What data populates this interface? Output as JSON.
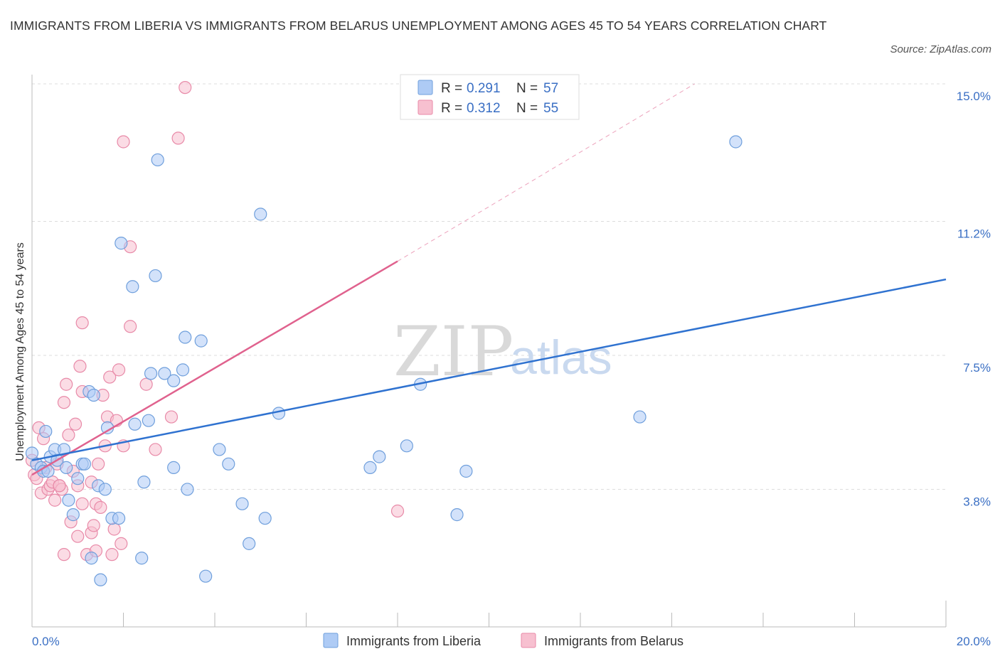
{
  "header": {
    "title": "IMMIGRANTS FROM LIBERIA VS IMMIGRANTS FROM BELARUS UNEMPLOYMENT AMONG AGES 45 TO 54 YEARS CORRELATION CHART",
    "source": "Source: ZipAtlas.com"
  },
  "watermark": {
    "zip": "ZIP",
    "atlas": "atlas"
  },
  "legend": {
    "r_label": "R =",
    "n_label": "N =",
    "liberia": {
      "r": "0.291",
      "n": "57"
    },
    "belarus": {
      "r": "0.312",
      "n": "55"
    }
  },
  "bottom_legend": {
    "liberia": "Immigrants from Liberia",
    "belarus": "Immigrants from Belarus"
  },
  "colors": {
    "liberia_fill": "#aecbf5",
    "liberia_stroke": "#6f9fdc",
    "liberia_line": "#2f72d0",
    "belarus_fill": "#f7c0d0",
    "belarus_stroke": "#e88aa8",
    "belarus_line": "#e0628e",
    "axis_text": "#3a6fc4",
    "grid": "#dddddd"
  },
  "chart_data": {
    "type": "scatter",
    "title": "IMMIGRANTS FROM LIBERIA VS IMMIGRANTS FROM BELARUS UNEMPLOYMENT AMONG AGES 45 TO 54 YEARS CORRELATION CHART",
    "xlabel": "",
    "ylabel": "Unemployment Among Ages 45 to 54 years",
    "xlim": [
      0,
      20
    ],
    "ylim": [
      0,
      15
    ],
    "x_tick_labels": [
      "0.0%",
      "20.0%"
    ],
    "y_ticks": [
      3.8,
      7.5,
      11.2,
      15.0
    ],
    "y_tick_labels": [
      "3.8%",
      "7.5%",
      "11.2%",
      "15.0%"
    ],
    "grid": true,
    "legend_position": "top-center",
    "series": [
      {
        "name": "Immigrants from Liberia",
        "R": 0.291,
        "N": 57,
        "trend": {
          "x": [
            0,
            20
          ],
          "y": [
            4.6,
            9.6
          ],
          "dashed_extension": false
        },
        "points": [
          [
            0.0,
            4.8
          ],
          [
            0.1,
            4.5
          ],
          [
            0.2,
            4.4
          ],
          [
            0.25,
            4.3
          ],
          [
            0.3,
            5.4
          ],
          [
            0.35,
            4.3
          ],
          [
            0.4,
            4.7
          ],
          [
            0.5,
            4.9
          ],
          [
            0.55,
            4.6
          ],
          [
            0.7,
            4.9
          ],
          [
            0.75,
            4.4
          ],
          [
            0.8,
            3.5
          ],
          [
            0.9,
            3.1
          ],
          [
            1.0,
            4.1
          ],
          [
            1.1,
            4.5
          ],
          [
            1.15,
            4.5
          ],
          [
            1.25,
            6.5
          ],
          [
            1.3,
            1.9
          ],
          [
            1.35,
            6.4
          ],
          [
            1.45,
            3.9
          ],
          [
            1.5,
            1.3
          ],
          [
            1.6,
            3.8
          ],
          [
            1.65,
            5.5
          ],
          [
            1.75,
            3.0
          ],
          [
            1.9,
            3.0
          ],
          [
            1.95,
            10.6
          ],
          [
            2.2,
            9.4
          ],
          [
            2.25,
            5.6
          ],
          [
            2.4,
            1.9
          ],
          [
            2.45,
            4.0
          ],
          [
            2.55,
            5.7
          ],
          [
            2.6,
            7.0
          ],
          [
            2.7,
            9.7
          ],
          [
            2.75,
            12.9
          ],
          [
            2.9,
            7.0
          ],
          [
            3.1,
            6.8
          ],
          [
            3.1,
            4.4
          ],
          [
            3.3,
            7.1
          ],
          [
            3.35,
            8.0
          ],
          [
            3.4,
            3.8
          ],
          [
            3.7,
            7.9
          ],
          [
            3.8,
            1.4
          ],
          [
            4.1,
            4.9
          ],
          [
            4.3,
            4.5
          ],
          [
            4.6,
            3.4
          ],
          [
            4.75,
            2.3
          ],
          [
            5.0,
            11.4
          ],
          [
            5.1,
            3.0
          ],
          [
            5.4,
            5.9
          ],
          [
            7.4,
            4.4
          ],
          [
            7.6,
            4.7
          ],
          [
            8.2,
            5.0
          ],
          [
            8.5,
            6.7
          ],
          [
            9.3,
            3.1
          ],
          [
            9.5,
            4.3
          ],
          [
            13.3,
            5.8
          ],
          [
            15.4,
            13.4
          ]
        ]
      },
      {
        "name": "Immigrants from Belarus",
        "R": 0.312,
        "N": 55,
        "trend": {
          "x": [
            0,
            8
          ],
          "y": [
            4.2,
            10.1
          ],
          "dashed_extension_to": [
            14.5,
            15.0
          ]
        },
        "points": [
          [
            0.0,
            4.6
          ],
          [
            0.05,
            4.2
          ],
          [
            0.1,
            4.1
          ],
          [
            0.15,
            5.5
          ],
          [
            0.2,
            3.7
          ],
          [
            0.25,
            5.2
          ],
          [
            0.3,
            4.4
          ],
          [
            0.35,
            3.8
          ],
          [
            0.4,
            3.9
          ],
          [
            0.45,
            4.0
          ],
          [
            0.5,
            3.5
          ],
          [
            0.55,
            4.5
          ],
          [
            0.6,
            3.9
          ],
          [
            0.65,
            3.8
          ],
          [
            0.7,
            2.0
          ],
          [
            0.7,
            6.2
          ],
          [
            0.75,
            6.7
          ],
          [
            0.8,
            5.3
          ],
          [
            0.85,
            2.9
          ],
          [
            0.9,
            4.3
          ],
          [
            0.95,
            5.6
          ],
          [
            1.0,
            2.5
          ],
          [
            1.0,
            3.9
          ],
          [
            1.05,
            7.2
          ],
          [
            1.1,
            3.4
          ],
          [
            1.1,
            6.5
          ],
          [
            1.2,
            2.0
          ],
          [
            1.3,
            4.0
          ],
          [
            1.3,
            2.6
          ],
          [
            1.35,
            2.8
          ],
          [
            1.4,
            3.4
          ],
          [
            1.45,
            4.5
          ],
          [
            1.5,
            3.3
          ],
          [
            1.55,
            6.4
          ],
          [
            1.6,
            5.0
          ],
          [
            1.65,
            5.8
          ],
          [
            1.7,
            6.9
          ],
          [
            1.75,
            2.0
          ],
          [
            1.8,
            2.7
          ],
          [
            1.85,
            5.7
          ],
          [
            1.9,
            7.1
          ],
          [
            1.95,
            2.3
          ],
          [
            2.0,
            5.0
          ],
          [
            2.0,
            13.4
          ],
          [
            2.15,
            10.5
          ],
          [
            2.15,
            8.3
          ],
          [
            2.5,
            6.7
          ],
          [
            2.7,
            4.9
          ],
          [
            3.05,
            5.8
          ],
          [
            3.2,
            13.5
          ],
          [
            3.35,
            14.9
          ],
          [
            1.1,
            8.4
          ],
          [
            8.0,
            3.2
          ],
          [
            1.4,
            2.1
          ],
          [
            0.6,
            3.9
          ]
        ]
      }
    ]
  }
}
